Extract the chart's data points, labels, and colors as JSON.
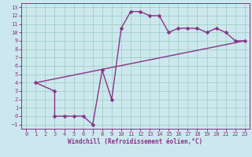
{
  "xlabel": "Windchill (Refroidissement éolien,°C)",
  "bg_color": "#cce8ee",
  "line_color": "#883388",
  "grid_color": "#99ccbb",
  "xlim": [
    -0.5,
    23.5
  ],
  "ylim": [
    -1.5,
    13.5
  ],
  "xticks": [
    0,
    1,
    2,
    3,
    4,
    5,
    6,
    7,
    8,
    9,
    10,
    11,
    12,
    13,
    14,
    15,
    16,
    17,
    18,
    19,
    20,
    21,
    22,
    23
  ],
  "yticks": [
    -1,
    0,
    1,
    2,
    3,
    4,
    5,
    6,
    7,
    8,
    9,
    10,
    11,
    12,
    13
  ],
  "curve1_x": [
    1,
    3,
    3,
    4,
    5,
    6,
    7,
    8,
    9,
    10,
    11,
    12,
    13,
    14,
    15,
    16,
    17,
    18,
    19,
    20,
    21,
    22,
    23
  ],
  "curve1_y": [
    4,
    3,
    0,
    0,
    0,
    0,
    -1,
    5.5,
    2,
    10.5,
    12.5,
    12.5,
    12,
    12,
    10,
    10.5,
    10.5,
    10.5,
    10,
    10.5,
    10,
    9,
    9
  ],
  "curve2_x": [
    1,
    23
  ],
  "curve2_y": [
    4,
    9
  ],
  "marker": "D",
  "marker_size": 2.5,
  "linewidth": 1.0,
  "xlabel_fontsize": 5.5,
  "tick_fontsize": 5.0
}
